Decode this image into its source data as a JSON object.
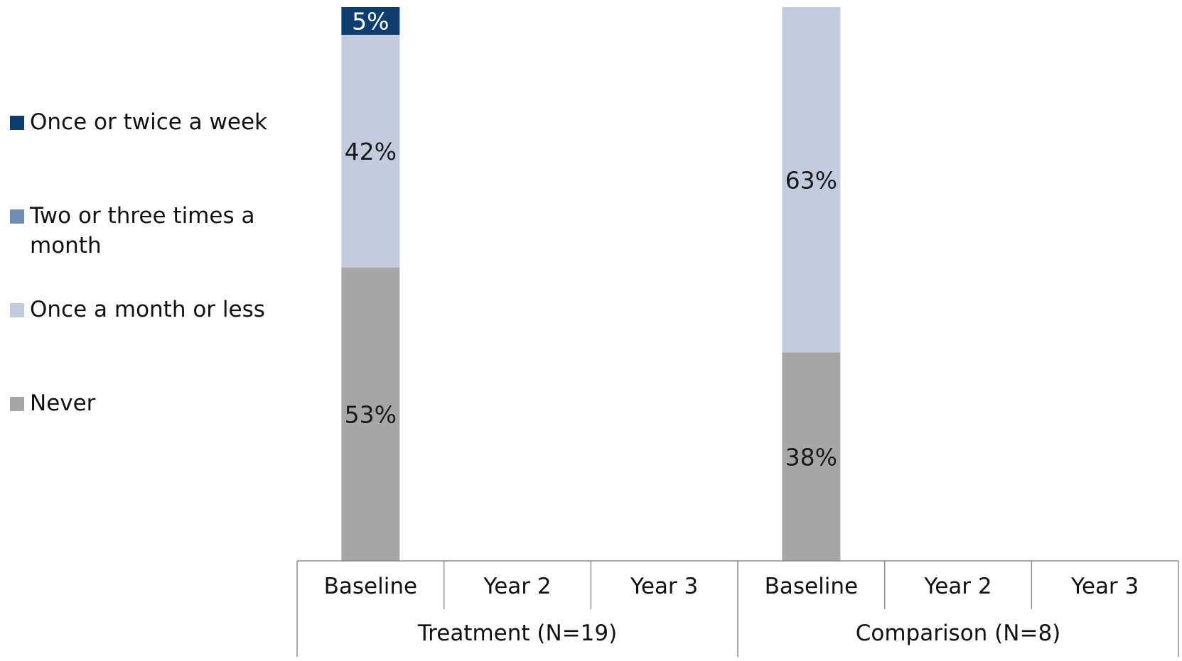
{
  "chart_data": {
    "type": "bar",
    "stacked": true,
    "groups": [
      {
        "label": "Treatment (N=19)",
        "categories": [
          "Baseline",
          "Year 2",
          "Year 3"
        ]
      },
      {
        "label": "Comparison (N=8)",
        "categories": [
          "Baseline",
          "Year 2",
          "Year 3"
        ]
      }
    ],
    "series": [
      {
        "name": "Never",
        "color": "#a6a6a6",
        "values": [
          53,
          null,
          null,
          38,
          null,
          null
        ],
        "labels": [
          "53%",
          "",
          "",
          "38%",
          "",
          ""
        ],
        "label_color": "#1a1a1a"
      },
      {
        "name": "Once a month or less",
        "color": "#c3cbdf",
        "values": [
          42,
          null,
          null,
          63,
          null,
          null
        ],
        "labels": [
          "42%",
          "",
          "",
          "63%",
          "",
          ""
        ],
        "label_color": "#1a1a1a"
      },
      {
        "name": "Two or three times a month",
        "color": "#6f8db2",
        "values": [
          0,
          null,
          null,
          0,
          null,
          null
        ],
        "labels": [
          "",
          "",
          "",
          "",
          "",
          ""
        ],
        "label_color": "#ffffff"
      },
      {
        "name": "Once or twice a week",
        "color": "#0f3d6e",
        "values": [
          5,
          null,
          null,
          0,
          null,
          null
        ],
        "labels": [
          "5%",
          "",
          "",
          "",
          "",
          ""
        ],
        "label_color": "#ffffff"
      }
    ],
    "legend": {
      "position": "left",
      "items": [
        {
          "label": "Once or twice a week",
          "lines": [
            "Once or twice a week"
          ],
          "color": "#0f3d6e"
        },
        {
          "label": "Two or three times a month",
          "lines": [
            "Two or three times a",
            "month"
          ],
          "color": "#6f8db2"
        },
        {
          "label": "Once a month or less",
          "lines": [
            "Once a month or less"
          ],
          "color": "#c3cbdf"
        },
        {
          "label": "Never",
          "lines": [
            "Never"
          ],
          "color": "#a6a6a6"
        }
      ]
    },
    "ylim": [
      0,
      100
    ],
    "grid": false,
    "title": "",
    "xlabel": "",
    "ylabel": ""
  }
}
